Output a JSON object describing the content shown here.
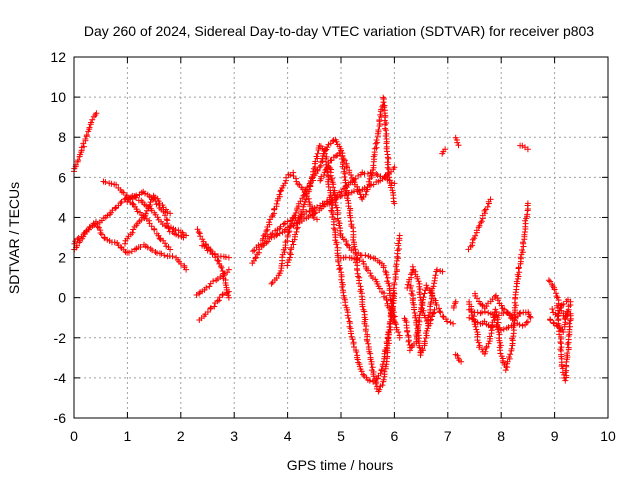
{
  "chart_data": {
    "type": "scatter",
    "title": "Day 260 of 2024, Sidereal Day-to-day VTEC variation (SDTVAR) for receiver p803",
    "xlabel": "GPS time / hours",
    "ylabel": "SDTVAR / TECUs",
    "xlim": [
      0,
      10
    ],
    "ylim": [
      -6,
      12
    ],
    "xticks": [
      0,
      1,
      2,
      3,
      4,
      5,
      6,
      7,
      8,
      9,
      10
    ],
    "yticks": [
      -6,
      -4,
      -2,
      0,
      2,
      4,
      6,
      8,
      10,
      12
    ],
    "grid": true,
    "legend": "none",
    "marker": "plus",
    "color": "#ff0000",
    "tracks": [
      {
        "x": [
          0.0,
          0.1,
          0.2,
          0.3,
          0.35,
          0.42
        ],
        "y": [
          6.3,
          7.0,
          7.8,
          8.5,
          8.9,
          9.2
        ]
      },
      {
        "x": [
          0.0,
          0.3,
          0.6,
          0.9,
          1.1,
          1.4,
          1.7,
          2.0,
          2.1
        ],
        "y": [
          2.7,
          3.5,
          4.0,
          4.8,
          5.1,
          4.5,
          3.6,
          3.3,
          3.1
        ]
      },
      {
        "x": [
          0.0,
          0.2,
          0.4,
          0.55,
          0.8,
          1.0,
          1.3,
          1.6,
          1.9,
          2.05,
          2.1
        ],
        "y": [
          2.4,
          3.2,
          3.8,
          3.0,
          2.7,
          2.2,
          2.6,
          2.2,
          2.0,
          1.6,
          1.4
        ]
      },
      {
        "x": [
          0.55,
          0.8,
          1.0,
          1.2,
          1.4,
          1.6,
          1.8
        ],
        "y": [
          5.8,
          5.6,
          5.0,
          4.3,
          3.8,
          3.0,
          2.4
        ]
      },
      {
        "x": [
          0.95,
          1.15,
          1.35,
          1.5,
          1.65,
          1.8
        ],
        "y": [
          2.7,
          3.5,
          4.2,
          5.1,
          4.6,
          4.2
        ]
      },
      {
        "x": [
          1.0,
          1.3,
          1.5,
          1.7,
          1.8,
          2.05
        ],
        "y": [
          4.8,
          5.3,
          4.9,
          4.2,
          3.3,
          3.0
        ]
      },
      {
        "x": [
          2.3,
          2.45,
          2.6,
          2.75,
          2.85,
          2.9
        ],
        "y": [
          3.4,
          2.7,
          2.2,
          1.6,
          0.6,
          0.0
        ]
      },
      {
        "x": [
          2.3,
          2.45,
          2.6,
          2.75,
          2.9
        ],
        "y": [
          0.1,
          0.4,
          0.8,
          1.0,
          1.4
        ]
      },
      {
        "x": [
          2.35,
          2.5,
          2.65,
          2.8,
          2.9
        ],
        "y": [
          -1.1,
          -0.7,
          -0.3,
          0.2,
          0.3
        ]
      },
      {
        "x": [
          2.4,
          2.55,
          2.7,
          2.85,
          2.9
        ],
        "y": [
          2.6,
          2.3,
          2.1,
          2.0,
          2.0
        ]
      },
      {
        "x": [
          3.35,
          3.5,
          3.7,
          3.9,
          4.1,
          4.3,
          4.5,
          4.7,
          4.9,
          5.1,
          5.3,
          5.5,
          5.7,
          5.9,
          6.0
        ],
        "y": [
          1.7,
          2.5,
          3.0,
          3.3,
          3.6,
          3.9,
          4.2,
          4.6,
          4.9,
          5.2,
          5.3,
          5.5,
          5.8,
          6.2,
          6.5
        ]
      },
      {
        "x": [
          3.35,
          3.5,
          3.6,
          3.7,
          3.8,
          3.9,
          4.0,
          4.1,
          4.2,
          4.3,
          4.4,
          4.5,
          4.55
        ],
        "y": [
          2.3,
          2.7,
          3.3,
          4.0,
          4.7,
          5.5,
          6.1,
          6.2,
          5.7,
          5.4,
          4.8,
          4.0,
          3.9
        ]
      },
      {
        "x": [
          3.6,
          3.8,
          4.0,
          4.2,
          4.4,
          4.6,
          4.8,
          5.0,
          5.2,
          5.4,
          5.6,
          5.8,
          6.0
        ],
        "y": [
          3.0,
          3.4,
          3.8,
          4.0,
          4.3,
          4.6,
          4.9,
          5.3,
          5.8,
          6.2,
          6.2,
          6.0,
          5.7
        ]
      },
      {
        "x": [
          3.7,
          3.85,
          3.95,
          4.05,
          4.2,
          4.4,
          4.5,
          4.6,
          4.7,
          4.8,
          4.9,
          5.0,
          5.1,
          5.2,
          5.3,
          5.4,
          5.5,
          5.6,
          5.7,
          5.8,
          5.9,
          6.0
        ],
        "y": [
          0.7,
          1.2,
          2.5,
          3.6,
          4.6,
          5.6,
          6.4,
          7.6,
          7.4,
          5.0,
          3.0,
          1.0,
          -0.5,
          -1.8,
          -3.0,
          -3.8,
          -4.1,
          -4.2,
          -4.0,
          -3.2,
          -1.7,
          0.2
        ]
      },
      {
        "x": [
          4.0,
          4.2,
          4.4,
          4.5,
          4.6,
          4.7,
          4.8,
          4.9,
          5.0,
          5.1,
          5.2,
          5.3,
          5.4,
          5.5,
          5.6,
          5.7,
          5.8,
          5.9,
          6.0,
          6.1
        ],
        "y": [
          1.6,
          3.8,
          5.4,
          6.1,
          6.5,
          7.3,
          7.7,
          7.9,
          7.3,
          5.5,
          3.7,
          1.6,
          -0.2,
          -2.2,
          -3.7,
          -4.7,
          -4.2,
          -2.0,
          0.5,
          3.1
        ]
      },
      {
        "x": [
          4.6,
          4.8,
          5.0,
          5.2,
          5.4,
          5.5,
          5.6,
          5.7,
          5.8,
          5.9,
          6.0
        ],
        "y": [
          5.8,
          6.8,
          7.3,
          6.0,
          4.9,
          5.4,
          6.5,
          8.4,
          10.0,
          6.0,
          4.7
        ]
      },
      {
        "x": [
          4.8,
          5.0,
          5.2,
          5.4,
          5.6,
          5.8,
          5.9,
          6.0,
          6.1
        ],
        "y": [
          6.5,
          3.1,
          2.4,
          2.1,
          2.0,
          1.6,
          0.6,
          -1.1,
          -2.0
        ]
      },
      {
        "x": [
          5.0,
          5.2,
          5.4,
          5.6,
          5.8,
          5.9,
          6.0
        ],
        "y": [
          2.0,
          2.0,
          1.8,
          1.0,
          0.2,
          -0.5,
          -1.2
        ]
      },
      {
        "x": [
          6.2,
          6.3,
          6.4,
          6.5,
          6.6,
          6.7,
          6.8,
          6.9,
          7.0,
          7.1
        ],
        "y": [
          -1.0,
          -2.6,
          -2.2,
          -0.6,
          0.6,
          0.2,
          -0.4,
          -0.9,
          -1.2,
          -1.3
        ]
      },
      {
        "x": [
          6.3,
          6.4,
          6.5,
          6.6,
          6.7,
          6.8,
          6.9
        ],
        "y": [
          0.6,
          -1.0,
          -2.9,
          -1.9,
          0.2,
          1.4,
          1.3
        ]
      },
      {
        "x": [
          6.25,
          6.35,
          6.45,
          6.55,
          6.65,
          6.75
        ],
        "y": [
          0.5,
          1.5,
          0.8,
          -0.9,
          -1.4,
          -0.6
        ]
      },
      {
        "x": [
          6.9,
          6.95
        ],
        "y": [
          7.2,
          7.4
        ]
      },
      {
        "x": [
          7.15,
          7.2
        ],
        "y": [
          8.0,
          7.6
        ]
      },
      {
        "x": [
          7.15,
          7.2,
          7.25
        ],
        "y": [
          -2.8,
          -3.0,
          -3.2
        ]
      },
      {
        "x": [
          7.1,
          7.15
        ],
        "y": [
          -0.5,
          -0.2
        ]
      },
      {
        "x": [
          7.4,
          7.5,
          7.6,
          7.7,
          7.8,
          7.9,
          8.0,
          8.1,
          8.2,
          8.3,
          8.4,
          8.5,
          8.55
        ],
        "y": [
          -0.6,
          -0.7,
          -0.8,
          -0.7,
          -0.8,
          -0.9,
          -0.8,
          -0.7,
          -1.1,
          -0.9,
          -0.7,
          -0.7,
          -1.0
        ]
      },
      {
        "x": [
          7.4,
          7.5,
          7.6,
          7.7,
          7.8,
          7.9,
          8.0,
          8.1,
          8.2,
          8.3,
          8.4,
          8.5
        ],
        "y": [
          -1.0,
          -1.1,
          -1.3,
          -1.2,
          -1.5,
          -1.4,
          -1.6,
          -1.5,
          -1.4,
          -1.3,
          -1.4,
          -1.2
        ]
      },
      {
        "x": [
          7.4,
          7.5,
          7.6,
          7.7,
          7.8
        ],
        "y": [
          2.4,
          3.0,
          3.6,
          4.3,
          4.9
        ]
      },
      {
        "x": [
          7.4,
          7.5,
          7.6,
          7.7,
          7.8,
          7.9,
          8.0,
          8.1,
          8.2,
          8.3,
          8.4,
          8.5
        ],
        "y": [
          -0.2,
          -1.2,
          -2.5,
          -2.8,
          -1.9,
          -0.6,
          -2.9,
          -3.6,
          -2.4,
          0.8,
          2.4,
          4.7
        ]
      },
      {
        "x": [
          7.5,
          7.6,
          7.7,
          7.8,
          7.9,
          8.0,
          8.1,
          8.2
        ],
        "y": [
          0.2,
          -0.3,
          -0.5,
          -0.2,
          0.1,
          -0.4,
          -0.7,
          -0.9
        ]
      },
      {
        "x": [
          8.35,
          8.45,
          8.5
        ],
        "y": [
          7.6,
          7.5,
          7.4
        ]
      },
      {
        "x": [
          8.9,
          9.0,
          9.1,
          9.2,
          9.25,
          9.3
        ],
        "y": [
          0.9,
          0.5,
          -0.4,
          -1.0,
          -0.7,
          -0.8
        ]
      },
      {
        "x": [
          8.9,
          9.0,
          9.1,
          9.15,
          9.2,
          9.25,
          9.3
        ],
        "y": [
          -1.1,
          -1.3,
          -1.5,
          -1.7,
          -1.2,
          -0.7,
          -0.2
        ]
      },
      {
        "x": [
          9.05,
          9.1,
          9.15,
          9.2,
          9.25,
          9.3
        ],
        "y": [
          -0.4,
          -1.8,
          -3.7,
          -4.1,
          -2.6,
          -0.9
        ]
      },
      {
        "x": [
          8.95,
          9.05,
          9.15,
          9.25
        ],
        "y": [
          -0.6,
          -0.9,
          -0.4,
          -0.1
        ]
      }
    ]
  }
}
